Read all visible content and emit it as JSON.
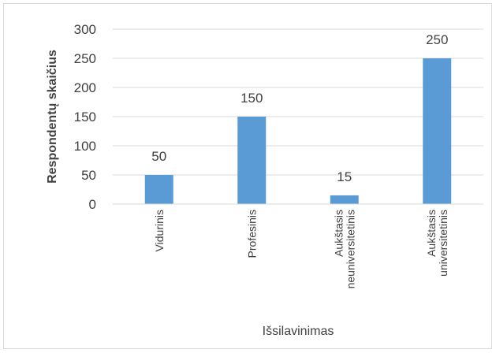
{
  "chart_data": {
    "type": "bar",
    "title": "",
    "xlabel": "Išsilavinimas",
    "ylabel": "Respondentų skaičius",
    "categories": [
      [
        "Vidurinis"
      ],
      [
        "Profesinis"
      ],
      [
        "Aukštasis",
        "neuniversitetinis"
      ],
      [
        "Aukštasis",
        "universitetinis"
      ]
    ],
    "values": [
      50,
      150,
      15,
      250
    ],
    "ylim": [
      0,
      300
    ],
    "yticks": [
      0,
      50,
      100,
      150,
      200,
      250,
      300
    ],
    "grid": true,
    "legend": "none",
    "bar_color": "#5b9bd5",
    "grid_color": "#d9d9d9",
    "text_color": "#404040"
  }
}
